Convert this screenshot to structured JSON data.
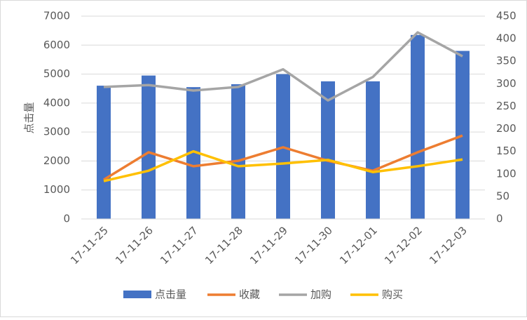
{
  "chart_data": {
    "type": "bar",
    "categories": [
      "17-11-25",
      "17-11-26",
      "17-11-27",
      "17-11-28",
      "17-11-29",
      "17-11-30",
      "17-12-01",
      "17-12-02",
      "17-12-03"
    ],
    "y_label": "点击量",
    "series": [
      {
        "name": "点击量",
        "type": "bar",
        "color": "#4472c4",
        "values": [
          4600,
          4950,
          4550,
          4650,
          5000,
          4750,
          4750,
          6350,
          5800
        ]
      },
      {
        "name": "收藏",
        "type": "line",
        "axis": "y2",
        "color": "#ed7d31",
        "values": [
          87,
          148,
          117,
          129,
          159,
          129,
          107,
          148,
          185
        ]
      },
      {
        "name": "加购",
        "type": "line",
        "axis": "y2",
        "color": "#a5a5a5",
        "values": [
          293,
          297,
          285,
          293,
          332,
          263,
          315,
          414,
          361
        ]
      },
      {
        "name": "购买",
        "type": "line",
        "axis": "y2",
        "color": "#ffc000",
        "values": [
          84,
          107,
          150,
          117,
          123,
          131,
          104,
          117,
          132
        ]
      }
    ],
    "ylim": [
      0,
      7000
    ],
    "yticks": [
      0,
      1000,
      2000,
      3000,
      4000,
      5000,
      6000,
      7000
    ],
    "y2lim": [
      0,
      450
    ],
    "y2ticks": [
      0,
      50,
      100,
      150,
      200,
      250,
      300,
      350,
      400,
      450
    ],
    "grid": true,
    "legend": "bottom"
  }
}
